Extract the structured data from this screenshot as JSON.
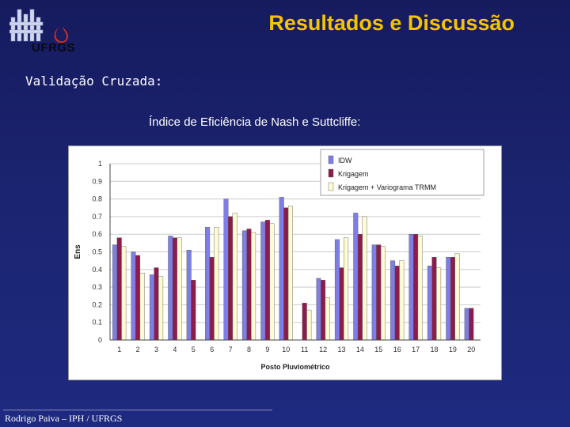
{
  "header": {
    "logo_text": "UFRGS",
    "title": "Resultados e Discussão"
  },
  "subtitle": "Validação Cruzada:",
  "chart_heading": "Índice de Eficiência de Nash e Suttcliffe:",
  "footer": "Rodrigo Paiva – IPH / UFRGS",
  "colors": {
    "title": "#f5c400",
    "idw": "#7e7ee6",
    "krigagem": "#8c1c4c",
    "krigagem_trmm": "#fffbd2"
  },
  "chart_data": {
    "type": "bar",
    "xlabel": "Posto Pluviométrico",
    "ylabel": "Ens",
    "ylim": [
      0,
      1
    ],
    "y_ticks": [
      "0",
      "0.1",
      "0.2",
      "0.3",
      "0.4",
      "0.5",
      "0.6",
      "0.7",
      "0.8",
      "0.9",
      "1"
    ],
    "categories": [
      "1",
      "2",
      "3",
      "4",
      "5",
      "6",
      "7",
      "8",
      "9",
      "10",
      "11",
      "12",
      "13",
      "14",
      "15",
      "16",
      "17",
      "18",
      "19",
      "20"
    ],
    "legend_position": "top-right",
    "series": [
      {
        "name": "IDW",
        "values": [
          0.54,
          0.5,
          0.37,
          0.59,
          0.51,
          0.64,
          0.8,
          0.62,
          0.67,
          0.81,
          0.0,
          0.35,
          0.57,
          0.72,
          0.54,
          0.45,
          0.6,
          0.42,
          0.47,
          0.18
        ]
      },
      {
        "name": "Krigagem",
        "values": [
          0.58,
          0.48,
          0.41,
          0.58,
          0.34,
          0.47,
          0.7,
          0.63,
          0.68,
          0.75,
          0.21,
          0.34,
          0.41,
          0.6,
          0.54,
          0.42,
          0.6,
          0.47,
          0.47,
          0.18
        ]
      },
      {
        "name": "Krigagem + Variograma TRMM",
        "values": [
          0.53,
          0.38,
          0.36,
          0.58,
          0.0,
          0.64,
          0.72,
          0.61,
          0.66,
          0.76,
          0.17,
          0.24,
          0.58,
          0.7,
          0.53,
          0.45,
          0.59,
          0.41,
          0.49,
          0.0
        ]
      }
    ]
  }
}
